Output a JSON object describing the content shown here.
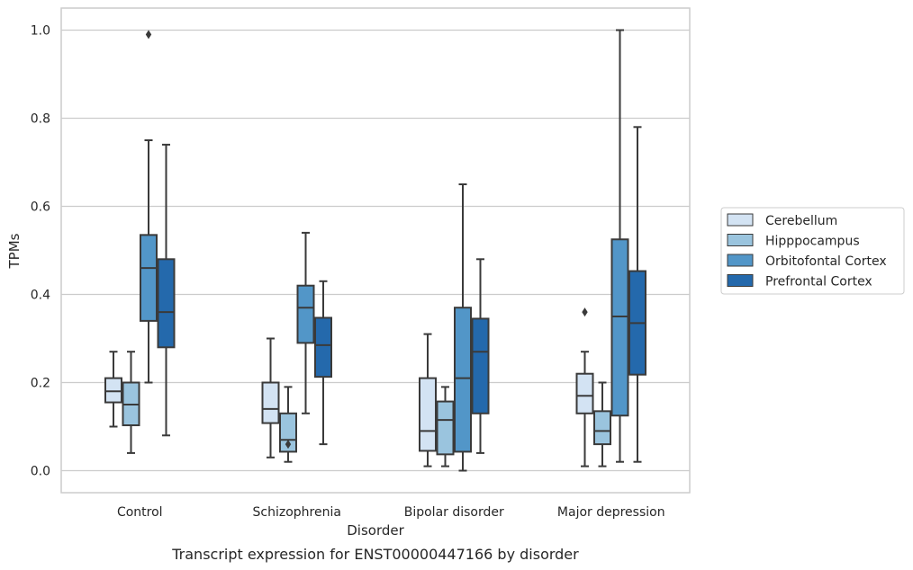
{
  "chart_data": {
    "type": "box",
    "title": "",
    "caption": "Transcript expression for ENST00000447166 by disorder",
    "xlabel": "Disorder",
    "ylabel": "TPMs",
    "ylim": [
      -0.05,
      1.05
    ],
    "yticks": [
      "0.0",
      "0.2",
      "0.4",
      "0.6",
      "0.8",
      "1.0"
    ],
    "grid": "horizontal",
    "legend_position": "right",
    "categories": [
      "Control",
      "Schizophrenia",
      "Bipolar disorder",
      "Major depression"
    ],
    "series": [
      {
        "name": "Cerebellum",
        "color": "#d3e3f3",
        "boxes": [
          {
            "whislo": 0.1,
            "q1": 0.155,
            "med": 0.18,
            "q3": 0.21,
            "whishi": 0.27,
            "fliers": []
          },
          {
            "whislo": 0.03,
            "q1": 0.108,
            "med": 0.14,
            "q3": 0.2,
            "whishi": 0.3,
            "fliers": []
          },
          {
            "whislo": 0.01,
            "q1": 0.045,
            "med": 0.09,
            "q3": 0.21,
            "whishi": 0.31,
            "fliers": []
          },
          {
            "whislo": 0.01,
            "q1": 0.13,
            "med": 0.17,
            "q3": 0.22,
            "whishi": 0.27,
            "fliers": [
              0.36
            ]
          }
        ]
      },
      {
        "name": "Hipppocampus",
        "color": "#9ac4de",
        "boxes": [
          {
            "whislo": 0.04,
            "q1": 0.103,
            "med": 0.15,
            "q3": 0.2,
            "whishi": 0.27,
            "fliers": []
          },
          {
            "whislo": 0.02,
            "q1": 0.043,
            "med": 0.07,
            "q3": 0.13,
            "whishi": 0.19,
            "fliers": [
              0.06
            ]
          },
          {
            "whislo": 0.01,
            "q1": 0.037,
            "med": 0.115,
            "q3": 0.157,
            "whishi": 0.19,
            "fliers": []
          },
          {
            "whislo": 0.01,
            "q1": 0.06,
            "med": 0.09,
            "q3": 0.135,
            "whishi": 0.2,
            "fliers": []
          }
        ]
      },
      {
        "name": "Orbitofontal Cortex",
        "color": "#5296c8",
        "boxes": [
          {
            "whislo": 0.2,
            "q1": 0.34,
            "med": 0.46,
            "q3": 0.535,
            "whishi": 0.75,
            "fliers": [
              0.99
            ]
          },
          {
            "whislo": 0.13,
            "q1": 0.29,
            "med": 0.37,
            "q3": 0.42,
            "whishi": 0.54,
            "fliers": []
          },
          {
            "whislo": 0.0,
            "q1": 0.043,
            "med": 0.21,
            "q3": 0.37,
            "whishi": 0.65,
            "fliers": []
          },
          {
            "whislo": 0.02,
            "q1": 0.125,
            "med": 0.35,
            "q3": 0.525,
            "whishi": 1.0,
            "fliers": []
          }
        ]
      },
      {
        "name": "Prefrontal Cortex",
        "color": "#2469ac",
        "boxes": [
          {
            "whislo": 0.08,
            "q1": 0.28,
            "med": 0.36,
            "q3": 0.48,
            "whishi": 0.74,
            "fliers": []
          },
          {
            "whislo": 0.06,
            "q1": 0.213,
            "med": 0.285,
            "q3": 0.347,
            "whishi": 0.43,
            "fliers": []
          },
          {
            "whislo": 0.04,
            "q1": 0.13,
            "med": 0.27,
            "q3": 0.345,
            "whishi": 0.48,
            "fliers": []
          },
          {
            "whislo": 0.02,
            "q1": 0.218,
            "med": 0.335,
            "q3": 0.453,
            "whishi": 0.78,
            "fliers": []
          }
        ]
      }
    ]
  }
}
